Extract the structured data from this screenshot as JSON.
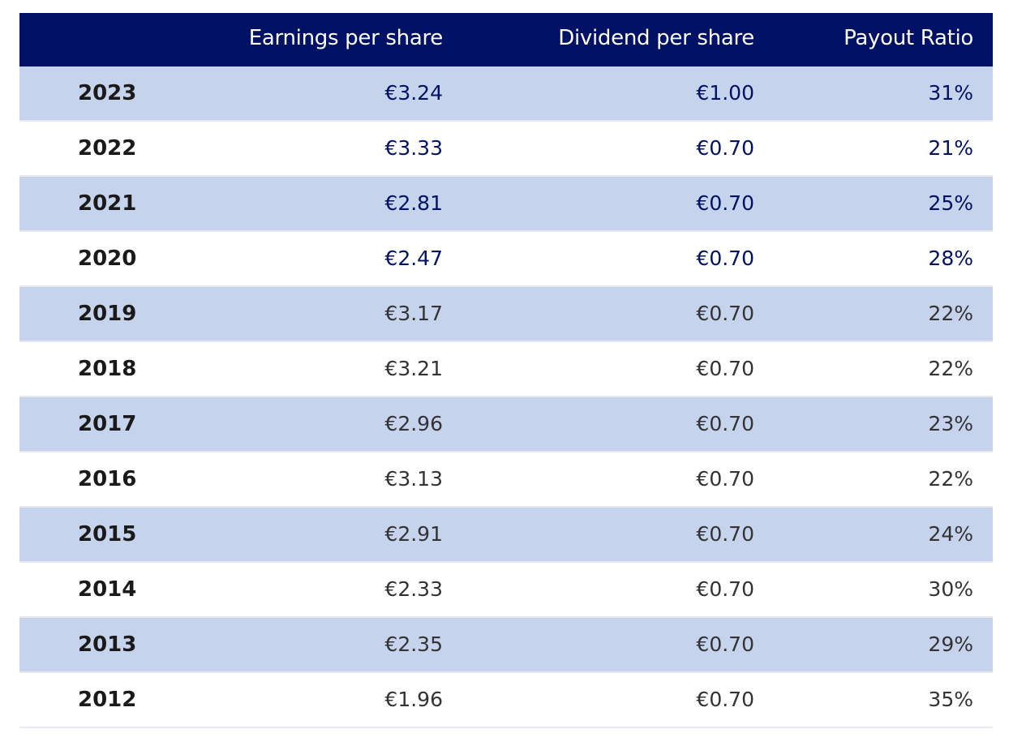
{
  "table": {
    "headers": {
      "year": "",
      "eps": "Earnings per share",
      "dps": "Dividend per share",
      "payout": "Payout Ratio"
    },
    "colors": {
      "header_bg": "#001166",
      "shaded_row": "#c5d3ed",
      "highlight_text": "#001166",
      "body_text": "#333333"
    },
    "rows": [
      {
        "year": "2023",
        "eps": "€3.24",
        "dps": "€1.00",
        "payout": "31%",
        "highlight": true
      },
      {
        "year": "2022",
        "eps": "€3.33",
        "dps": "€0.70",
        "payout": "21%",
        "highlight": true
      },
      {
        "year": "2021",
        "eps": "€2.81",
        "dps": "€0.70",
        "payout": "25%",
        "highlight": true
      },
      {
        "year": "2020",
        "eps": "€2.47",
        "dps": "€0.70",
        "payout": "28%",
        "highlight": true
      },
      {
        "year": "2019",
        "eps": "€3.17",
        "dps": "€0.70",
        "payout": "22%",
        "highlight": false
      },
      {
        "year": "2018",
        "eps": "€3.21",
        "dps": "€0.70",
        "payout": "22%",
        "highlight": false
      },
      {
        "year": "2017",
        "eps": "€2.96",
        "dps": "€0.70",
        "payout": "23%",
        "highlight": false
      },
      {
        "year": "2016",
        "eps": "€3.13",
        "dps": "€0.70",
        "payout": "22%",
        "highlight": false
      },
      {
        "year": "2015",
        "eps": "€2.91",
        "dps": "€0.70",
        "payout": "24%",
        "highlight": false
      },
      {
        "year": "2014",
        "eps": "€2.33",
        "dps": "€0.70",
        "payout": "30%",
        "highlight": false
      },
      {
        "year": "2013",
        "eps": "€2.35",
        "dps": "€0.70",
        "payout": "29%",
        "highlight": false
      },
      {
        "year": "2012",
        "eps": "€1.96",
        "dps": "€0.70",
        "payout": "35%",
        "highlight": false
      }
    ]
  }
}
